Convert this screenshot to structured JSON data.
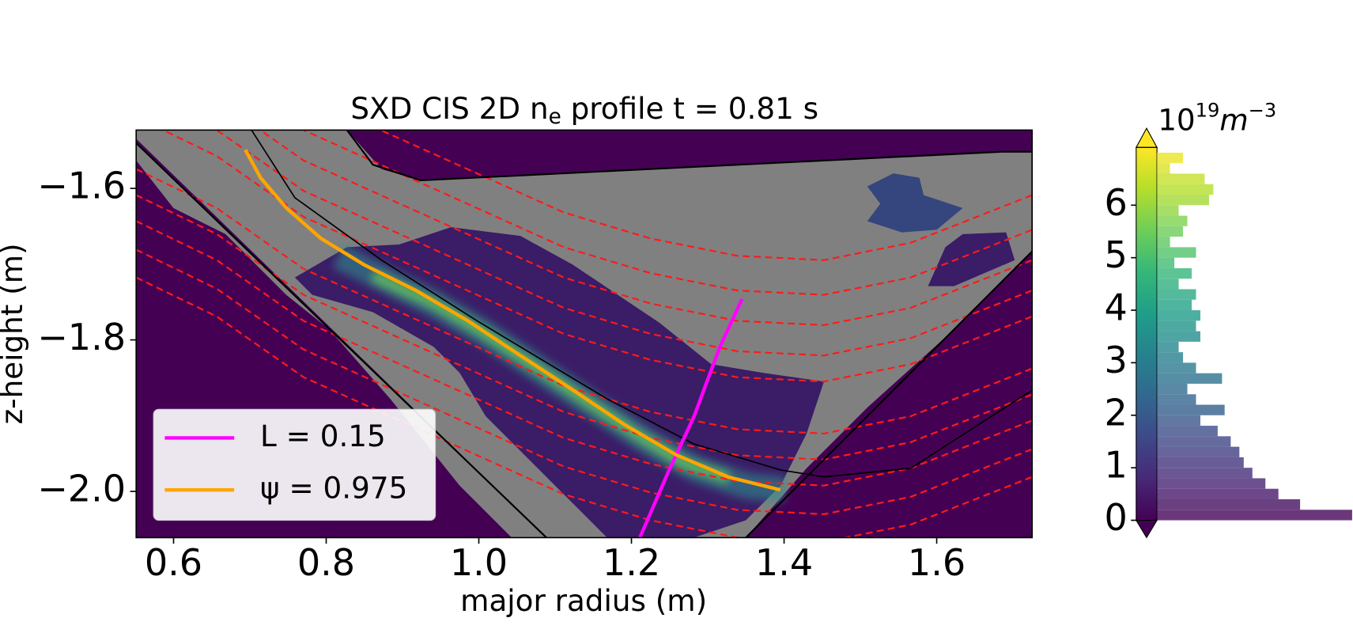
{
  "chart_data": {
    "type": "line",
    "title": {
      "before": "SXD CIS 2D n",
      "sub": "e",
      "after": " profile t = 0.81 s"
    },
    "x_label": "major radius (m)",
    "y_label": "z-height (m)",
    "xlim": [
      0.551,
      1.725
    ],
    "ylim": [
      -2.061,
      -1.523
    ],
    "xticks": [
      0.6,
      0.8,
      {
        "value": 1,
        "label": "1.0"
      },
      1.2,
      1.4,
      1.6
    ],
    "yticks": [
      {
        "value": -2,
        "label": "−2.0"
      },
      {
        "value": -1.8,
        "label": "−1.8"
      },
      {
        "value": -1.6,
        "label": "−1.6"
      }
    ],
    "legend": "lower left",
    "series": [
      {
        "name": "L = 0.15",
        "color": "#ff00ff",
        "x": [
          1.211,
          1.248,
          1.282,
          1.316,
          1.345
        ],
        "y": [
          -2.061,
          -1.975,
          -1.901,
          -1.809,
          -1.746
        ]
      },
      {
        "name": "ψ = 0.975",
        "color": "#ffa500",
        "x": [
          0.694,
          0.714,
          0.748,
          0.793,
          0.85,
          0.918,
          0.986,
          1.055,
          1.123,
          1.191,
          1.259,
          1.327,
          1.395
        ],
        "y": [
          -1.549,
          -1.586,
          -1.626,
          -1.666,
          -1.701,
          -1.735,
          -1.775,
          -1.821,
          -1.866,
          -1.912,
          -1.952,
          -1.981,
          -1.998
        ]
      }
    ],
    "colorbar": {
      "label": {
        "base": "10",
        "exp": "19",
        "unit": "m",
        "unit_exp": "−3"
      },
      "colormap": "viridis",
      "extend": "both",
      "lim": [
        0,
        7.1
      ],
      "ticks": [
        0,
        1,
        2,
        3,
        4,
        5,
        6
      ]
    },
    "histogram": {
      "bins": [
        0,
        0.2,
        0.4,
        0.6,
        0.8,
        1,
        1.2,
        1.4,
        1.6,
        1.8,
        2,
        2.2,
        2.4,
        2.6,
        2.8,
        3,
        3.2,
        3.4,
        3.6,
        3.8,
        4,
        4.2,
        4.4,
        4.6,
        4.8,
        5,
        5.2,
        5.4,
        5.6,
        5.8,
        6,
        6.2,
        6.4,
        6.6,
        6.8,
        7
      ],
      "counts": [
        225,
        165,
        140,
        125,
        110,
        100,
        95,
        85,
        70,
        50,
        78,
        45,
        35,
        75,
        45,
        30,
        25,
        50,
        45,
        50,
        40,
        45,
        25,
        40,
        20,
        45,
        15,
        30,
        35,
        25,
        60,
        65,
        55,
        15,
        30
      ],
      "xlim": [
        0,
        225
      ]
    }
  }
}
